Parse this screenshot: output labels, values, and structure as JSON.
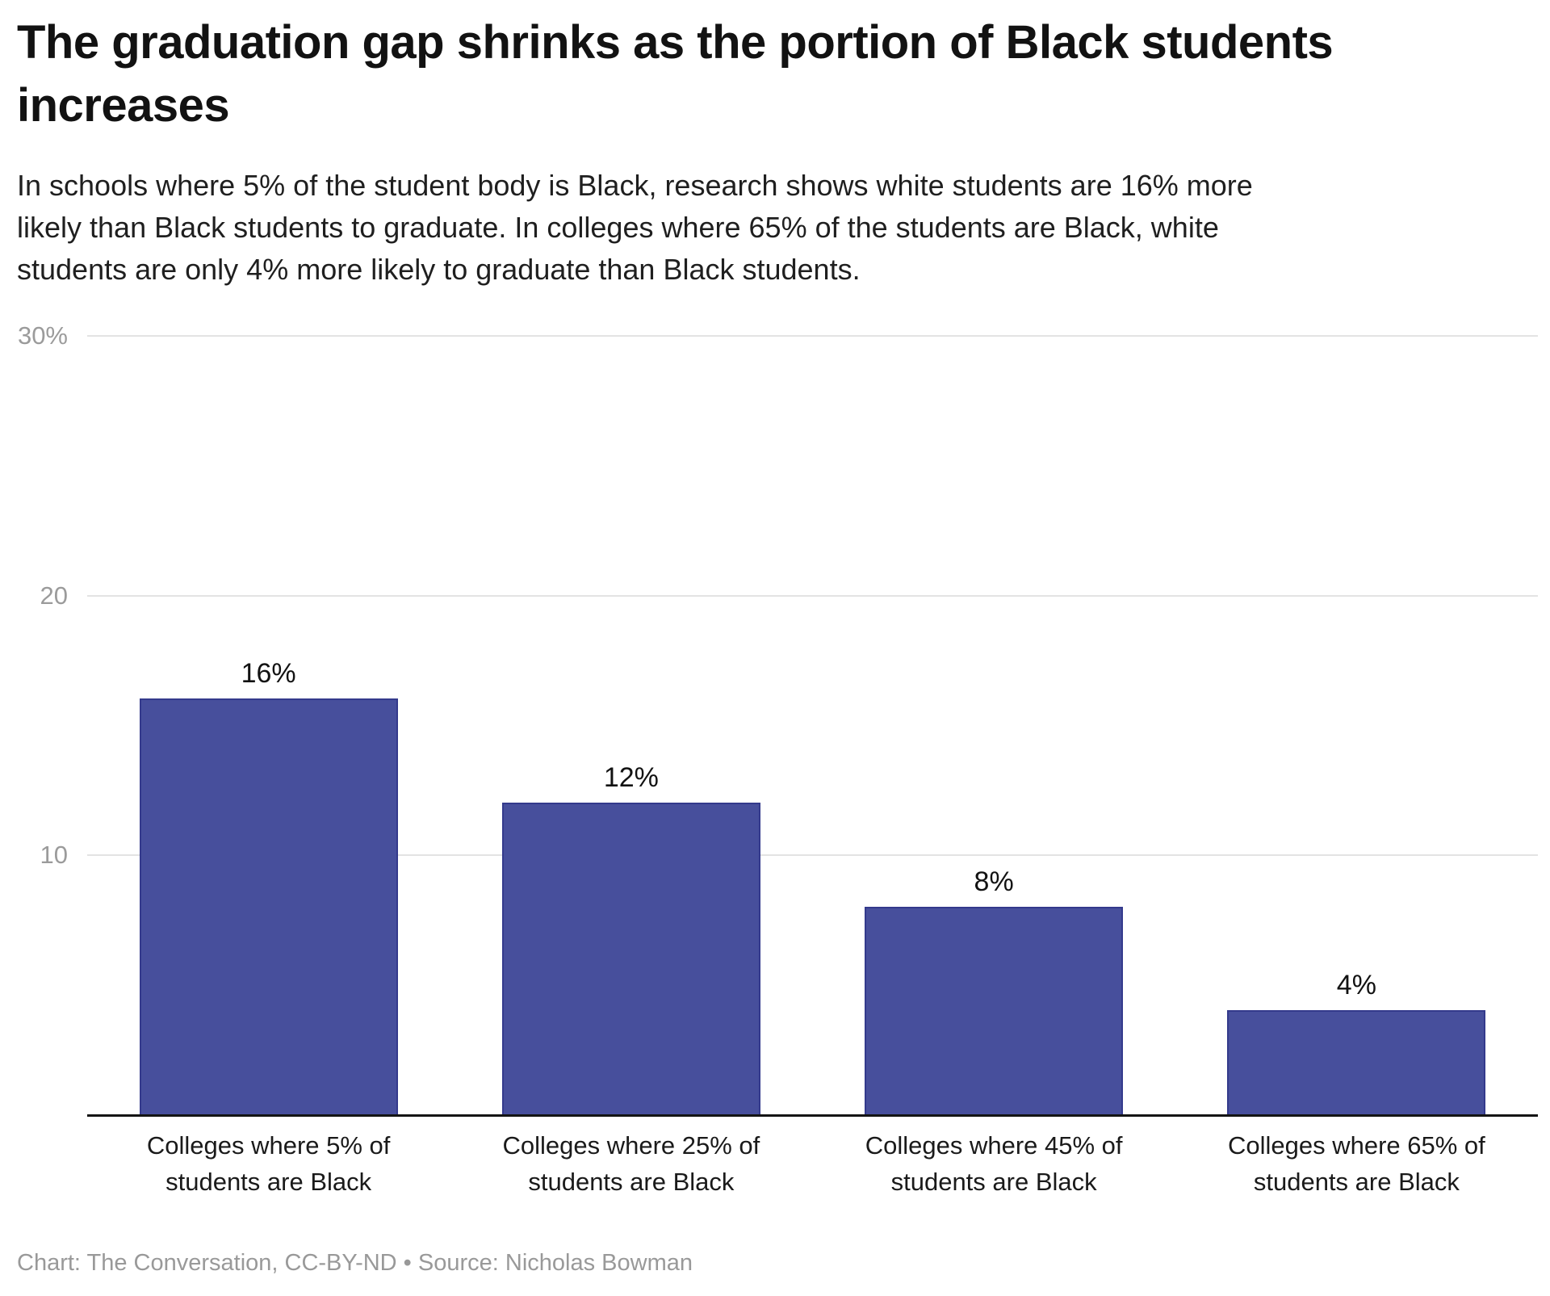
{
  "header": {
    "title": "The graduation gap shrinks as the portion of Black students\nincreases",
    "subtitle": "In schools where 5% of the student body is Black, research shows white students are 16% more\nlikely than Black students to graduate. In colleges where 65% of the students are Black, white\nstudents are only 4% more likely to graduate than Black students."
  },
  "footer": {
    "text": "Chart: The Conversation, CC-BY-ND • Source: Nicholas Bowman"
  },
  "chart_data": {
    "type": "bar",
    "title": "The graduation gap shrinks as the portion of Black students increases",
    "subtitle": "In schools where 5% of the student body is Black, research shows white students are 16% more likely than Black students to graduate. In colleges where 65% of the students are Black, white students are only 4% more likely to graduate than Black students.",
    "categories": [
      "Colleges where 5% of\nstudents are Black",
      "Colleges where 25% of\nstudents are Black",
      "Colleges where 45% of\nstudents are Black",
      "Colleges where 65% of\nstudents are Black"
    ],
    "values": [
      16,
      12,
      8,
      4
    ],
    "value_labels": [
      "16%",
      "12%",
      "8%",
      "4%"
    ],
    "yticks": [
      {
        "value": 30,
        "label": "30%"
      },
      {
        "value": 20,
        "label": "20"
      },
      {
        "value": 10,
        "label": "10"
      }
    ],
    "ylim": [
      0,
      30
    ],
    "xlabel": "",
    "ylabel": "",
    "grid": true,
    "legend": false,
    "bar_color": "#474f9c",
    "bar_border_color": "#343a8c",
    "gridline_color": "#e3e3e3",
    "axis_color": "#141414",
    "tick_label_color": "#9b9b9b",
    "value_label_color": "#121212"
  }
}
